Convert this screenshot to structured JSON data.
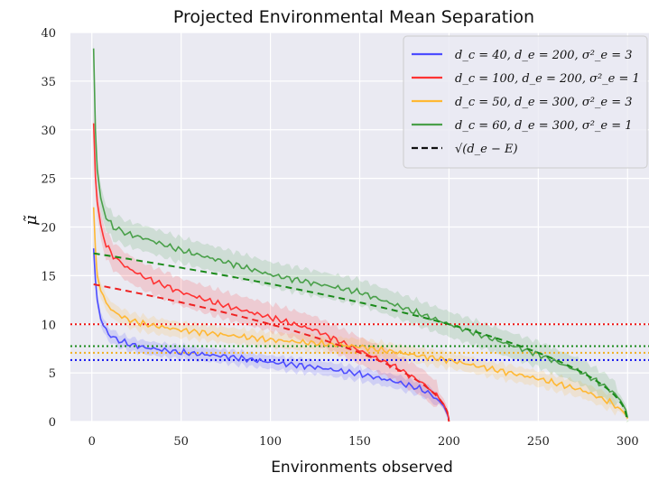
{
  "chart_data": {
    "type": "line",
    "title": "Projected Environmental Mean Separation",
    "xlabel": "Environments observed",
    "ylabel": "μ̃",
    "xlim": [
      -12,
      312
    ],
    "ylim": [
      0,
      40
    ],
    "xticks": [
      0,
      50,
      100,
      150,
      200,
      250,
      300
    ],
    "yticks": [
      0,
      5,
      10,
      15,
      20,
      25,
      30,
      35,
      40
    ],
    "grid": true,
    "legend_position": "top-right",
    "series": [
      {
        "name": "d_c = 40, d_e = 200, σ²_e = 3",
        "color": "#4d4dff",
        "band": 0.7,
        "x": [
          1,
          2,
          3,
          5,
          8,
          12,
          20,
          30,
          50,
          75,
          100,
          125,
          150,
          170,
          185,
          193,
          197,
          199,
          200
        ],
        "values": [
          17.8,
          14.5,
          12.5,
          10.6,
          9.3,
          8.6,
          8.0,
          7.6,
          7.1,
          6.7,
          6.1,
          5.6,
          4.9,
          4.1,
          3.3,
          2.4,
          1.6,
          0.8,
          0.2
        ]
      },
      {
        "name": "d_c = 100, d_e = 200, σ²_e = 1",
        "color": "#ff3333",
        "band": 1.4,
        "x": [
          1,
          2,
          3,
          5,
          8,
          12,
          20,
          30,
          50,
          75,
          100,
          125,
          150,
          170,
          185,
          193,
          197,
          199,
          200
        ],
        "values": [
          30.5,
          25.5,
          22.5,
          20.0,
          18.2,
          17.0,
          15.8,
          14.8,
          13.3,
          11.9,
          10.7,
          9.4,
          7.3,
          5.6,
          4.0,
          2.7,
          1.8,
          1.0,
          0.3
        ]
      },
      {
        "name": "d_c = 50, d_e = 300, σ²_e = 3",
        "color": "#ffb833",
        "band": 0.8,
        "x": [
          1,
          2,
          3,
          5,
          8,
          12,
          20,
          30,
          50,
          75,
          100,
          150,
          200,
          250,
          275,
          290,
          296,
          299,
          300
        ],
        "values": [
          22.0,
          17.5,
          15.2,
          13.5,
          12.2,
          11.3,
          10.5,
          10.0,
          9.4,
          8.9,
          8.4,
          7.7,
          6.3,
          4.4,
          3.2,
          2.0,
          1.3,
          0.7,
          0.3
        ]
      },
      {
        "name": "d_c = 60, d_e = 300, σ²_e = 1",
        "color": "#4aa04a",
        "band": 1.3,
        "x": [
          1,
          2,
          3,
          5,
          8,
          12,
          20,
          30,
          50,
          75,
          100,
          150,
          200,
          250,
          275,
          290,
          296,
          299,
          300
        ],
        "values": [
          38.3,
          30.0,
          26.0,
          22.8,
          21.0,
          20.0,
          19.3,
          18.8,
          17.6,
          16.4,
          15.1,
          13.3,
          10.0,
          6.9,
          5.0,
          3.3,
          2.2,
          1.2,
          0.4
        ]
      }
    ],
    "reference_curve": {
      "name": "√(d_e − E)",
      "color": "#111111",
      "style": "dashed",
      "curves": [
        {
          "color": "#3333ee",
          "x": [
            1,
            200
          ],
          "scale": 1.0,
          "de": 200,
          "visible": false
        },
        {
          "color": "#ee2222",
          "x": [
            1,
            200
          ],
          "scale": 1.0,
          "de": 200,
          "visible": true
        },
        {
          "color": "#1a8a1a",
          "x": [
            1,
            300
          ],
          "scale": 1.0,
          "de": 300,
          "visible": true
        }
      ]
    },
    "horizontal_lines": [
      {
        "y": 10.0,
        "color": "#ee1111"
      },
      {
        "y": 7.75,
        "color": "#1a8a1a"
      },
      {
        "y": 7.07,
        "color": "#f0b020"
      },
      {
        "y": 6.32,
        "color": "#1111ee"
      }
    ],
    "legend": [
      {
        "label": "d_c = 40, d_e = 200, σ²_e = 3",
        "color": "#4d4dff",
        "style": "solid"
      },
      {
        "label": "d_c = 100, d_e = 200, σ²_e = 1",
        "color": "#ff3333",
        "style": "solid"
      },
      {
        "label": "d_c = 50, d_e = 300, σ²_e = 3",
        "color": "#ffb833",
        "style": "solid"
      },
      {
        "label": "d_c = 60, d_e = 300, σ²_e = 1",
        "color": "#4aa04a",
        "style": "solid"
      },
      {
        "label": "√(d_e − E)",
        "color": "#111111",
        "style": "dashed"
      }
    ]
  }
}
